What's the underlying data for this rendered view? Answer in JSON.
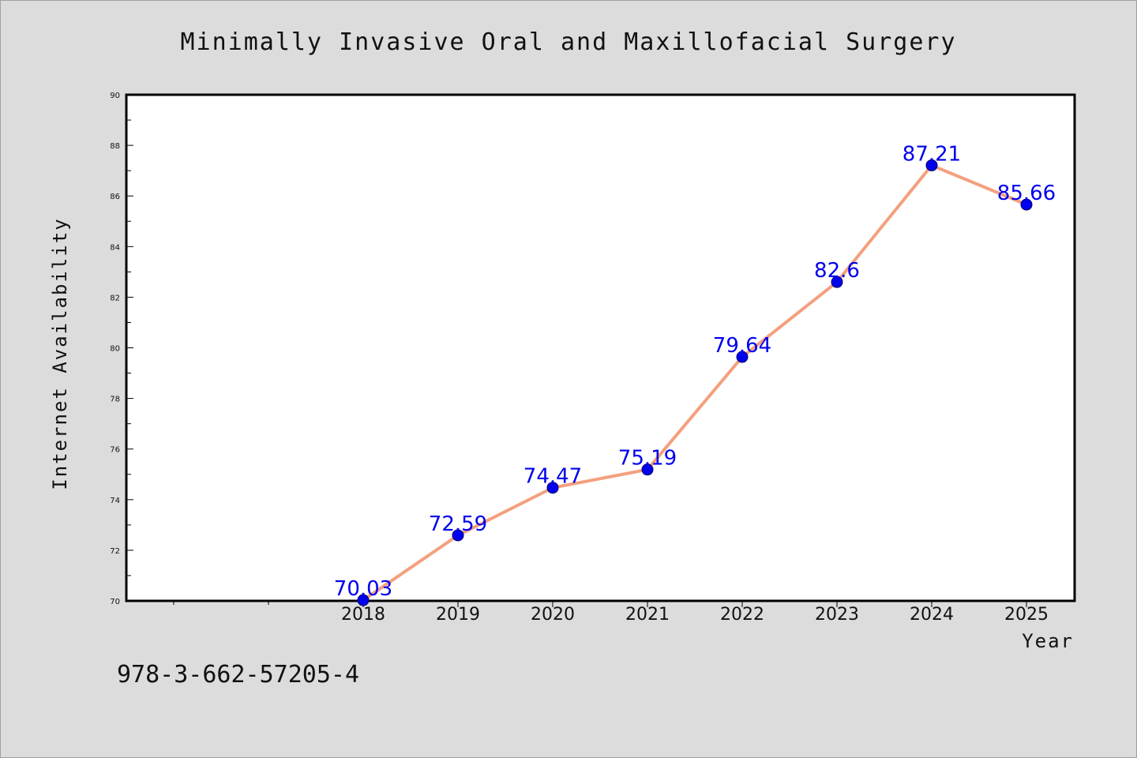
{
  "colors": {
    "background": "#dcdcdc",
    "plot_background": "#ffffff",
    "line": "#f4a07e",
    "marker": "#0000ee",
    "data_label": "#0000ee"
  },
  "footer_text": "978-3-662-57205-4",
  "chart_data": {
    "type": "line",
    "title": "Minimally Invasive Oral and Maxillofacial Surgery",
    "xlabel": "Year",
    "ylabel": "Internet Availability",
    "categories": [
      "2018",
      "2019",
      "2020",
      "2021",
      "2022",
      "2023",
      "2024",
      "2025"
    ],
    "series": [
      {
        "values": [
          70.03,
          72.59,
          74.47,
          75.19,
          79.64,
          82.6,
          87.21,
          85.66
        ],
        "labels": [
          "70.03",
          "72.59",
          "74.47",
          "75.19",
          "79.64",
          "82.6",
          "87.21",
          "85.66"
        ]
      }
    ],
    "ylim": [
      70,
      90
    ],
    "yticks": [
      70,
      72,
      74,
      76,
      78,
      80,
      82,
      84,
      86,
      88,
      90
    ],
    "grid": false,
    "legend": "none"
  }
}
